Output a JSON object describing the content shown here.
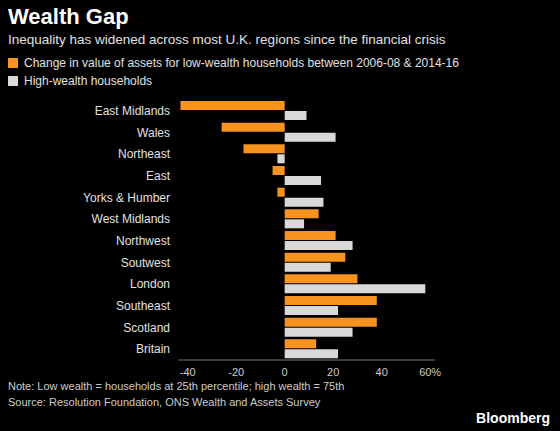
{
  "chart_data": {
    "type": "bar",
    "orientation": "horizontal",
    "title": "Wealth Gap",
    "subtitle": "Inequality has widened across most U.K. regions since the financial crisis",
    "categories": [
      "East Midlands",
      "Wales",
      "Northeast",
      "East",
      "Yorks & Humber",
      "West Midlands",
      "Northwest",
      "Soutwest",
      "London",
      "Southeast",
      "Scotland",
      "Britain"
    ],
    "series": [
      {
        "name": "Change in value of assets for low-wealth households between 2006-08 & 2014-16",
        "color": "#f7931e",
        "values": [
          -43,
          -26,
          -17,
          -5,
          -3,
          14,
          21,
          25,
          30,
          38,
          38,
          13
        ]
      },
      {
        "name": "High-wealth households",
        "color": "#d9d9d9",
        "values": [
          9,
          21,
          -3,
          15,
          16,
          8,
          28,
          19,
          58,
          22,
          28,
          22
        ]
      }
    ],
    "xlim": [
      -44,
      62
    ],
    "xticks": [
      -40,
      -20,
      0,
      20,
      40,
      {
        "value": 60,
        "label": "60%"
      }
    ],
    "grid": false,
    "legend": "top-left",
    "note": "Note: Low wealth = households at 25th percentile; high wealth = 75th",
    "source": "Source: Resolution Foundation, ONS Wealth and Assets Survey",
    "credit": "Bloomberg"
  }
}
